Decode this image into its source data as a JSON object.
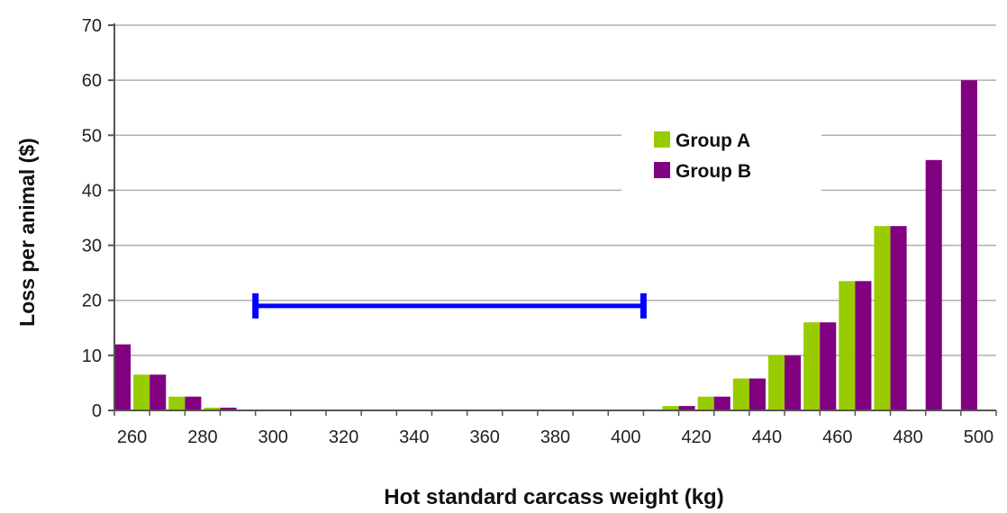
{
  "chart_data": {
    "type": "bar",
    "title": "",
    "xlabel": "Hot standard carcass weight (kg)",
    "ylabel": "Loss per animal ($)",
    "ylim": [
      0,
      70
    ],
    "yticks": [
      0,
      10,
      20,
      30,
      40,
      50,
      60,
      70
    ],
    "xlim": [
      255,
      505
    ],
    "xticks": [
      260,
      280,
      300,
      320,
      340,
      360,
      380,
      400,
      420,
      440,
      460,
      480,
      500
    ],
    "grid": true,
    "legend_position": "upper-right",
    "bin_width": 10,
    "series": [
      {
        "name": "Group A",
        "color": "#99cc00",
        "x": [
          260,
          270,
          280,
          410,
          420,
          430,
          440,
          450,
          460,
          470,
          490
        ],
        "values": [
          6.5,
          2.5,
          0.5,
          0.8,
          2.5,
          5.8,
          10.0,
          16.0,
          23.5,
          33.5,
          0
        ]
      },
      {
        "name": "Group B",
        "color": "#800080",
        "x": [
          250,
          260,
          270,
          280,
          410,
          420,
          430,
          440,
          450,
          460,
          470,
          480,
          490
        ],
        "values": [
          12.0,
          6.5,
          2.5,
          0.5,
          0.8,
          2.5,
          5.8,
          10.0,
          16.0,
          23.5,
          33.5,
          45.5,
          60.0
        ]
      }
    ],
    "annotation": {
      "type": "range-bar",
      "color": "#0000ff",
      "x_start": 295,
      "x_end": 405,
      "y": 19
    }
  }
}
